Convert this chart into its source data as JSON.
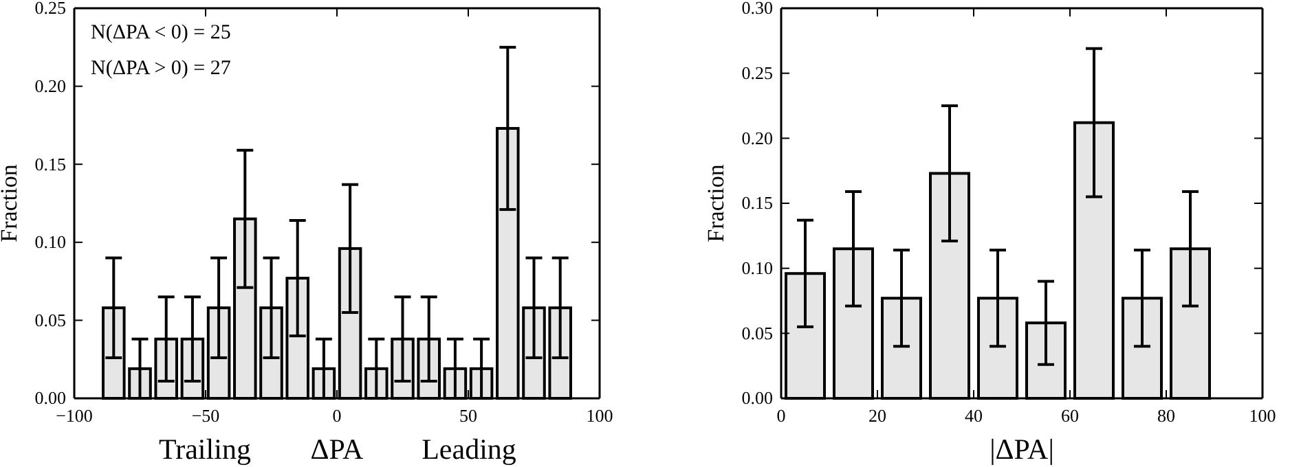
{
  "chart_data": [
    {
      "type": "histogram",
      "ylabel": "Fraction",
      "xlabel": "ΔPA",
      "bins": [
        -90,
        -80,
        -70,
        -60,
        -50,
        -40,
        -30,
        -20,
        -10,
        0,
        10,
        20,
        30,
        40,
        50,
        60,
        70,
        80,
        90
      ],
      "values": [
        0.058,
        0.019,
        0.038,
        0.038,
        0.058,
        0.115,
        0.058,
        0.077,
        0.019,
        0.096,
        0.019,
        0.038,
        0.038,
        0.019,
        0.019,
        0.173,
        0.058,
        0.058
      ],
      "errors": [
        0.032,
        0.019,
        0.027,
        0.027,
        0.032,
        0.044,
        0.032,
        0.037,
        0.019,
        0.041,
        0.019,
        0.027,
        0.027,
        0.019,
        0.019,
        0.052,
        0.032,
        0.032
      ],
      "color": "#e6e6e6",
      "xlim": [
        -100,
        100
      ],
      "xticks": [
        {
          "value": -100,
          "label": "−100"
        },
        {
          "value": -50,
          "label": "−50"
        },
        0,
        50,
        100
      ],
      "ylim": [
        0,
        0.25
      ],
      "yticks": [
        {
          "value": 0,
          "label": "0.00"
        },
        {
          "value": 0.05,
          "label": "0.05"
        },
        {
          "value": 0.1,
          "label": "0.10"
        },
        {
          "value": 0.15,
          "label": "0.15"
        },
        {
          "value": 0.2,
          "label": "0.20"
        },
        {
          "value": 0.25,
          "label": "0.25"
        }
      ],
      "grid": false,
      "annotations": [
        "N(ΔPA < 0) = 25",
        "N(ΔPA > 0) = 27",
        "Trailing",
        "Leading"
      ]
    },
    {
      "type": "histogram",
      "ylabel": "Fraction",
      "xlabel": "|ΔPA|",
      "bins": [
        0,
        10,
        20,
        30,
        40,
        50,
        60,
        70,
        80,
        90
      ],
      "values": [
        0.096,
        0.115,
        0.077,
        0.173,
        0.077,
        0.058,
        0.212,
        0.077,
        0.115
      ],
      "errors": [
        0.041,
        0.044,
        0.037,
        0.052,
        0.037,
        0.032,
        0.057,
        0.037,
        0.044
      ],
      "color": "#e6e6e6",
      "xlim": [
        0,
        100
      ],
      "xticks": [
        0,
        20,
        40,
        60,
        80,
        100
      ],
      "ylim": [
        0,
        0.3
      ],
      "yticks": [
        {
          "value": 0,
          "label": "0.00"
        },
        {
          "value": 0.05,
          "label": "0.05"
        },
        {
          "value": 0.1,
          "label": "0.10"
        },
        {
          "value": 0.15,
          "label": "0.15"
        },
        {
          "value": 0.2,
          "label": "0.20"
        },
        {
          "value": 0.25,
          "label": "0.25"
        },
        {
          "value": 0.3,
          "label": "0.30"
        }
      ],
      "grid": false
    }
  ]
}
